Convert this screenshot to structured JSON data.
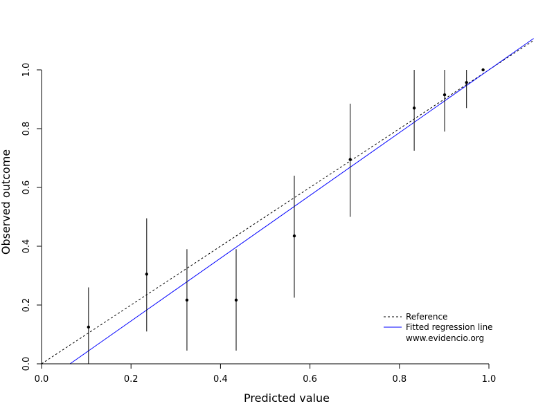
{
  "chart_data": {
    "type": "scatter",
    "title": "",
    "xlabel": "Predicted value",
    "ylabel": "Observed outcome",
    "xlim": [
      0,
      1
    ],
    "ylim": [
      0,
      1
    ],
    "x_ticks": [
      0.0,
      0.2,
      0.4,
      0.6,
      0.8,
      1.0
    ],
    "y_ticks": [
      0.0,
      0.2,
      0.4,
      0.6,
      0.8,
      1.0
    ],
    "x_tick_labels": [
      "0.0",
      "0.2",
      "0.4",
      "0.6",
      "0.8",
      "1.0"
    ],
    "y_tick_labels": [
      "0.0",
      "0.2",
      "0.4",
      "0.6",
      "0.8",
      "1.0"
    ],
    "grid": false,
    "legend_position": "bottom-right",
    "points": [
      {
        "x": 0.105,
        "y": 0.125,
        "lower": 0.0,
        "upper": 0.26
      },
      {
        "x": 0.235,
        "y": 0.305,
        "lower": 0.11,
        "upper": 0.495
      },
      {
        "x": 0.325,
        "y": 0.217,
        "lower": 0.045,
        "upper": 0.39
      },
      {
        "x": 0.435,
        "y": 0.217,
        "lower": 0.045,
        "upper": 0.39
      },
      {
        "x": 0.565,
        "y": 0.435,
        "lower": 0.225,
        "upper": 0.64
      },
      {
        "x": 0.69,
        "y": 0.695,
        "lower": 0.5,
        "upper": 0.885
      },
      {
        "x": 0.833,
        "y": 0.87,
        "lower": 0.725,
        "upper": 1.0
      },
      {
        "x": 0.901,
        "y": 0.915,
        "lower": 0.79,
        "upper": 1.0
      },
      {
        "x": 0.95,
        "y": 0.957,
        "lower": 0.87,
        "upper": 1.0
      },
      {
        "x": 0.987,
        "y": 1.0,
        "lower": 1.0,
        "upper": 1.0
      }
    ],
    "reference_line": {
      "slope": 1,
      "intercept": 0,
      "style": "dashed",
      "color": "#000000"
    },
    "fitted_line": {
      "slope": 1.068,
      "intercept": -0.068,
      "color": "#0000ff"
    },
    "legend": {
      "reference": "Reference",
      "fitted": "Fitted regression line",
      "source": "www.evidencio.org"
    }
  }
}
